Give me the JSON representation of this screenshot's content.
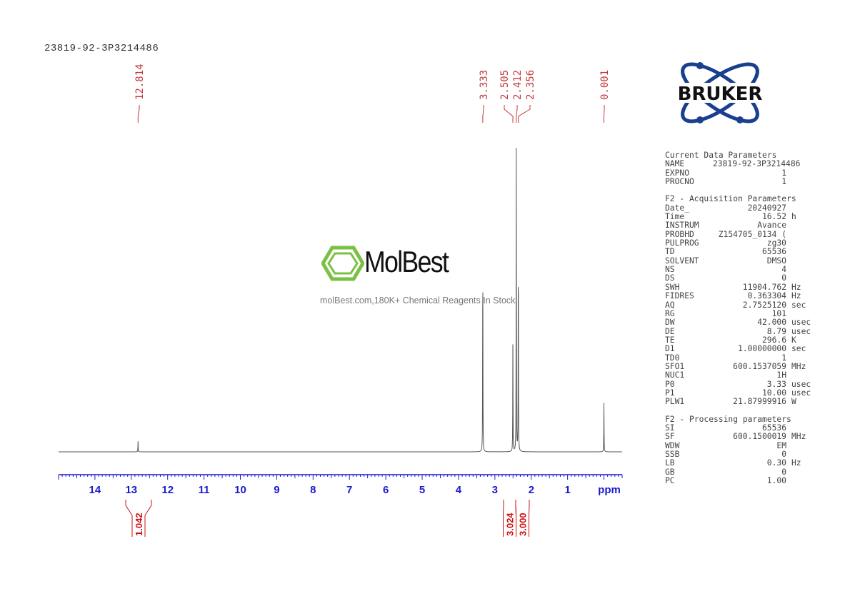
{
  "sample_name": "23819-92-3P3214486",
  "logo": {
    "brand": "BRUKER",
    "color": "#1b3f8f"
  },
  "watermark": {
    "name": "MolBest",
    "tagline": "molBest.com,180K+ Chemical Reagents In Stock.",
    "color": "#7ac143"
  },
  "parameters": [
    {
      "title": "Current Data Parameters",
      "rows": [
        {
          "k": "NAME",
          "v": "23819-92-3P3214486",
          "u": ""
        },
        {
          "k": "EXPNO",
          "v": "1",
          "u": ""
        },
        {
          "k": "PROCNO",
          "v": "1",
          "u": ""
        }
      ]
    },
    {
      "title": "F2 - Acquisition Parameters",
      "rows": [
        {
          "k": "Date_",
          "v": "20240927",
          "u": ""
        },
        {
          "k": "Time",
          "v": "16.52",
          "u": "h"
        },
        {
          "k": "INSTRUM",
          "v": "Avance",
          "u": ""
        },
        {
          "k": "PROBHD",
          "v": "Z154705_0134 (",
          "u": ""
        },
        {
          "k": "PULPROG",
          "v": "zg30",
          "u": ""
        },
        {
          "k": "TD",
          "v": "65536",
          "u": ""
        },
        {
          "k": "SOLVENT",
          "v": "DMSO",
          "u": ""
        },
        {
          "k": "NS",
          "v": "4",
          "u": ""
        },
        {
          "k": "DS",
          "v": "0",
          "u": ""
        },
        {
          "k": "SWH",
          "v": "11904.762",
          "u": "Hz"
        },
        {
          "k": "FIDRES",
          "v": "0.363304",
          "u": "Hz"
        },
        {
          "k": "AQ",
          "v": "2.7525120",
          "u": "sec"
        },
        {
          "k": "RG",
          "v": "101",
          "u": ""
        },
        {
          "k": "DW",
          "v": "42.000",
          "u": "usec"
        },
        {
          "k": "DE",
          "v": "8.79",
          "u": "usec"
        },
        {
          "k": "TE",
          "v": "296.6",
          "u": "K"
        },
        {
          "k": "D1",
          "v": "1.00000000",
          "u": "sec"
        },
        {
          "k": "TD0",
          "v": "1",
          "u": ""
        },
        {
          "k": "SFO1",
          "v": "600.1537059",
          "u": "MHz"
        },
        {
          "k": "NUC1",
          "v": "1H",
          "u": ""
        },
        {
          "k": "P0",
          "v": "3.33",
          "u": "usec"
        },
        {
          "k": "P1",
          "v": "10.00",
          "u": "usec"
        },
        {
          "k": "PLW1",
          "v": "21.87999916",
          "u": "W"
        }
      ]
    },
    {
      "title": "F2 - Processing parameters",
      "rows": [
        {
          "k": "SI",
          "v": "65536",
          "u": ""
        },
        {
          "k": "SF",
          "v": "600.1500019",
          "u": "MHz"
        },
        {
          "k": "WDW",
          "v": "EM",
          "u": ""
        },
        {
          "k": "SSB",
          "v": "0",
          "u": ""
        },
        {
          "k": "LB",
          "v": "0.30",
          "u": "Hz"
        },
        {
          "k": "GB",
          "v": "0",
          "u": ""
        },
        {
          "k": "PC",
          "v": "1.00",
          "u": ""
        }
      ]
    }
  ],
  "chart_data": {
    "type": "line",
    "xlabel": "ppm",
    "xlim": [
      15.0,
      -0.5
    ],
    "x_reversed": true,
    "x_ticks": [
      14,
      13,
      12,
      11,
      10,
      9,
      8,
      7,
      6,
      5,
      4,
      3,
      2,
      1
    ],
    "grid": false,
    "peaks": [
      {
        "ppm": 12.814,
        "label": "12.814",
        "intensity": 0.035
      },
      {
        "ppm": 3.333,
        "label": "3.333",
        "intensity": 0.68
      },
      {
        "ppm": 2.505,
        "label": "2.505",
        "intensity": 0.36
      },
      {
        "ppm": 2.412,
        "label": "2.412",
        "intensity": 1.0
      },
      {
        "ppm": 2.356,
        "label": "2.356",
        "intensity": 0.72
      },
      {
        "ppm": 0.001,
        "label": "0.001",
        "intensity": 0.16
      }
    ],
    "integrals": [
      {
        "from": 13.1,
        "to": 12.5,
        "value": "1.042"
      },
      {
        "from": 2.45,
        "to": 2.38,
        "value": "3.024"
      },
      {
        "from": 2.38,
        "to": 2.3,
        "value": "3.000"
      }
    ],
    "colors": {
      "spectrum": "#555555",
      "peak_labels": "#c0393b",
      "axis": "#1a1ad0",
      "integrals": "#cc1111"
    }
  }
}
